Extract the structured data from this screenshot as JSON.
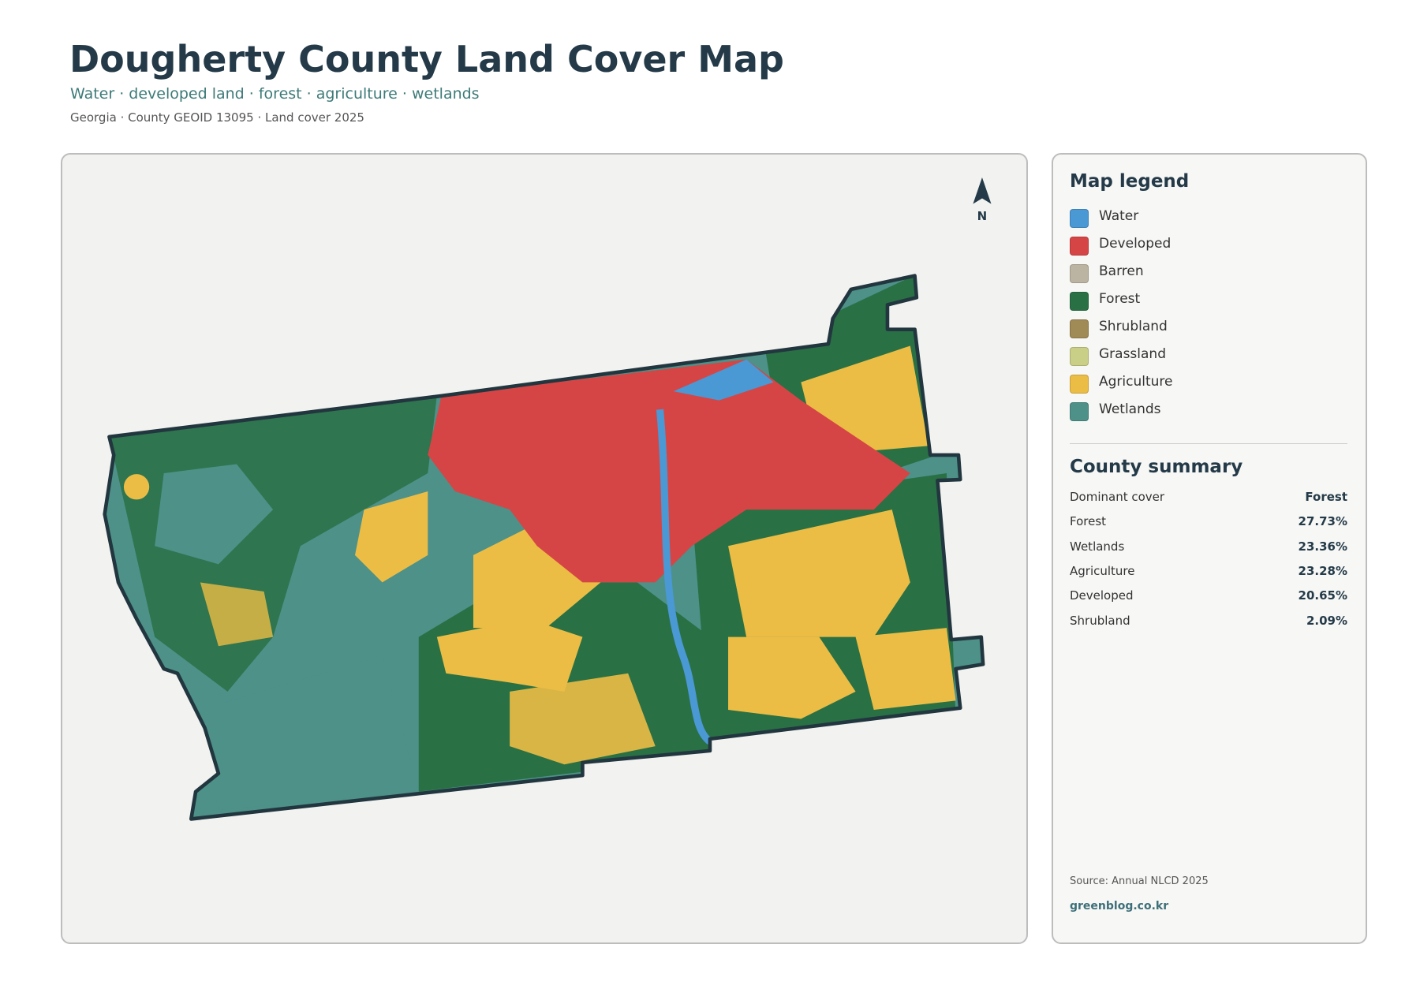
{
  "header": {
    "title": "Dougherty County Land Cover Map",
    "subtitle": "Water · developed land · forest · agriculture · wetlands",
    "meta": "Georgia · County GEOID 13095 · Land cover 2025"
  },
  "map": {
    "north": "N"
  },
  "legend": {
    "title": "Map legend",
    "items": [
      {
        "name": "Water",
        "color": "#4a98d4"
      },
      {
        "name": "Developed",
        "color": "#d64545"
      },
      {
        "name": "Barren",
        "color": "#bcb4a2"
      },
      {
        "name": "Forest",
        "color": "#2a7045"
      },
      {
        "name": "Shrubland",
        "color": "#a08a55"
      },
      {
        "name": "Grassland",
        "color": "#c9cf86"
      },
      {
        "name": "Agriculture",
        "color": "#ecbd45"
      },
      {
        "name": "Wetlands",
        "color": "#4d9189"
      }
    ]
  },
  "summary": {
    "title": "County summary",
    "rows": [
      [
        "Dominant cover",
        "Forest"
      ],
      [
        "Forest",
        "27.73%"
      ],
      [
        "Wetlands",
        "23.36%"
      ],
      [
        "Agriculture",
        "23.28%"
      ],
      [
        "Developed",
        "20.65%"
      ],
      [
        "Shrubland",
        "2.09%"
      ]
    ]
  },
  "footer": {
    "source": "Source: Annual NLCD 2025",
    "site": "greenblog.co.kr"
  }
}
